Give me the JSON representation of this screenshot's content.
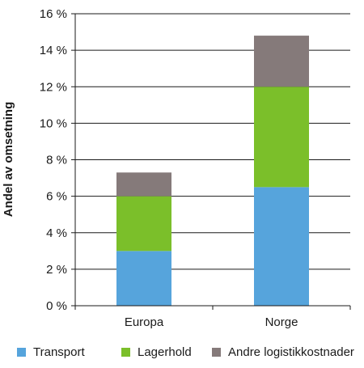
{
  "chart_data": {
    "type": "bar",
    "stacked": true,
    "categories": [
      "Europa",
      "Norge"
    ],
    "series": [
      {
        "name": "Transport",
        "values": [
          3.0,
          6.5
        ],
        "color": "#56a4dc"
      },
      {
        "name": "Lagerhold",
        "values": [
          3.0,
          5.5
        ],
        "color": "#7bbf2a"
      },
      {
        "name": "Andre logistikkostnader",
        "values": [
          1.3,
          2.8
        ],
        "color": "#857a7a"
      }
    ],
    "title": "",
    "xlabel": "",
    "ylabel": "Andel av omsetning",
    "ylim": [
      0,
      16
    ],
    "yticks": [
      0,
      2,
      4,
      6,
      8,
      10,
      12,
      14,
      16
    ],
    "ytick_labels": [
      "0 %",
      "2 %",
      "4 %",
      "6 %",
      "8 %",
      "10 %",
      "12 %",
      "14 %",
      "16 %"
    ],
    "grid": true,
    "legend_position": "bottom"
  }
}
